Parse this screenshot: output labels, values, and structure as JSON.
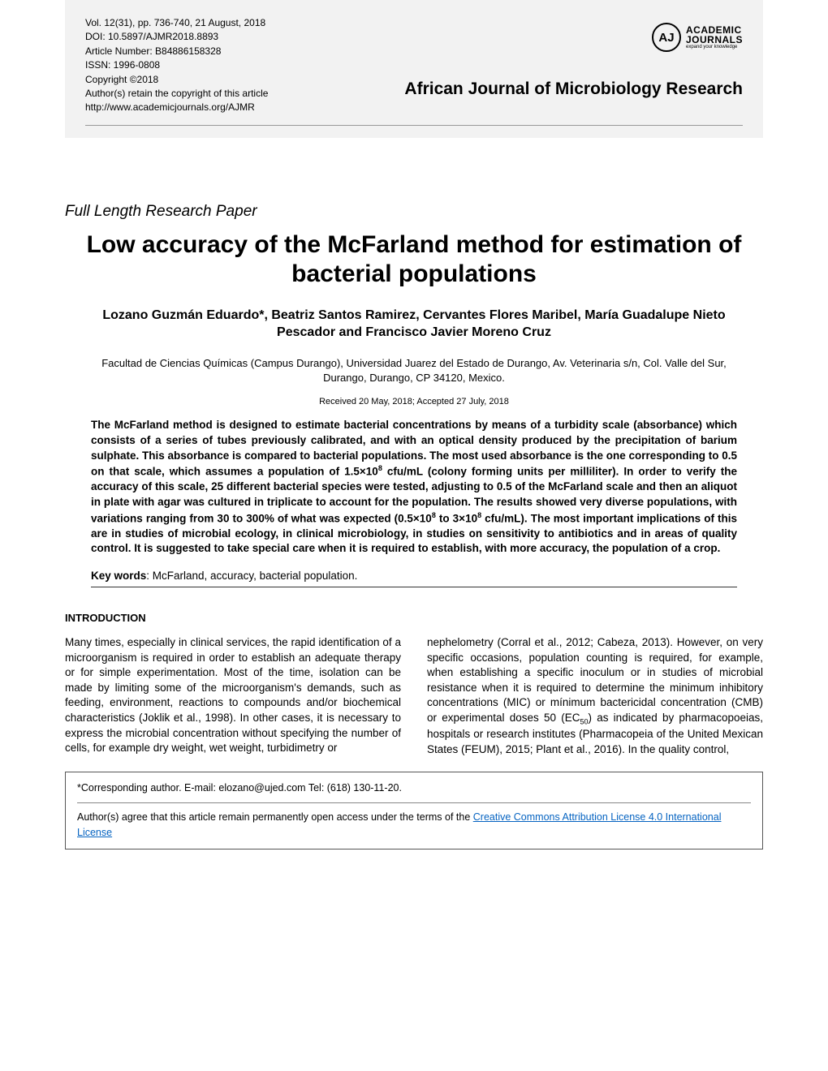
{
  "header": {
    "vol_line": "Vol. 12(31), pp. 736-740, 21 August, 2018",
    "doi": "DOI: 10.5897/AJMR2018.8893",
    "article_number": "Article Number: B84886158328",
    "issn": "ISSN: 1996-0808",
    "copyright": "Copyright ©2018",
    "retain": "Author(s) retain the copyright of this article",
    "url": "http://www.academicjournals.org/AJMR",
    "journal_title": "African Journal of Microbiology Research",
    "logo_initials": "AJ",
    "logo_main": "ACADEMIC",
    "logo_main2": "JOURNALS",
    "logo_sub": "expand your knowledge"
  },
  "article": {
    "paper_type": "Full Length Research Paper",
    "title": "Low accuracy of the McFarland method for estimation of bacterial populations",
    "authors": "Lozano Guzmán Eduardo*, Beatriz Santos Ramirez, Cervantes Flores Maribel, María Guadalupe Nieto Pescador and Francisco Javier Moreno Cruz",
    "affiliation": "Facultad de Ciencias Químicas (Campus Durango), Universidad Juarez del Estado de Durango, Av. Veterinaria s/n, Col. Valle del Sur, Durango, Durango, CP 34120, Mexico.",
    "dates": "Received 20 May, 2018; Accepted 27 July, 2018",
    "keywords_label": "Key words",
    "keywords": ": McFarland, accuracy, bacterial population."
  },
  "abstract": {
    "p1": "The McFarland method is designed to estimate bacterial concentrations by means of a turbidity scale (absorbance) which consists of a series of tubes previously calibrated, and with an optical density produced by the precipitation of barium sulphate. This absorbance is compared to bacterial populations. The most used absorbance is the one corresponding to 0.5 on that scale, which assumes a population of 1.5×10",
    "sup1": "8",
    "p2": " cfu/mL (colony forming units per milliliter). In order to verify the accuracy of this scale, 25 different bacterial species were tested, adjusting to 0.5 of the McFarland scale and then an aliquot in plate with agar was cultured in triplicate to account for the population. The results showed very diverse populations, with variations ranging from 30 to 300% of what was expected (0.5×10",
    "sup2": "8",
    "p3": " to 3×10",
    "sup3": "8",
    "p4": " cfu/mL). The most important implications of this are in studies of microbial ecology, in clinical microbiology, in studies on sensitivity to antibiotics and in areas of quality control. It is suggested to take special care when it is required to establish, with more accuracy, the population of a crop."
  },
  "body": {
    "section_heading": "INTRODUCTION",
    "col1": "Many times, especially in clinical services, the rapid identification of a microorganism is required in order to establish an adequate therapy or for simple experimentation. Most of the time, isolation can be made by limiting some of the microorganism's demands, such as feeding, environment, reactions to compounds and/or biochemical characteristics (Joklik et al., 1998). In other cases, it is necessary to express the microbial concentration without specifying the number of cells, for example dry weight, wet weight, turbidimetry or",
    "col2a": "nephelometry (Corral et al., 2012; Cabeza, 2013). However, on very specific occasions, population counting is required, for example, when establishing a specific inoculum or in studies of microbial resistance when it is required to determine the minimum inhibitory concentrations (MIC) or mínimum bactericidal concentration (CMB) or experimental doses 50 (EC",
    "col2_sub": "50",
    "col2b": ") as indicated by pharmacopoeias, hospitals or research institutes (Pharmacopeia of the United Mexican States (FEUM), 2015; Plant et al., 2016). In the  quality  control,"
  },
  "footer": {
    "corresponding": "*Corresponding author. E-mail: elozano@ujed.com Tel: (618) 130-11-20.",
    "license_pre": "Author(s) agree that this article remain permanently open access under the terms of the ",
    "license_link": "Creative Commons Attribution License 4.0 International License"
  },
  "styles": {
    "page_bg": "#ffffff",
    "header_bg": "#f2f2f2",
    "link_color": "#0563c1"
  }
}
